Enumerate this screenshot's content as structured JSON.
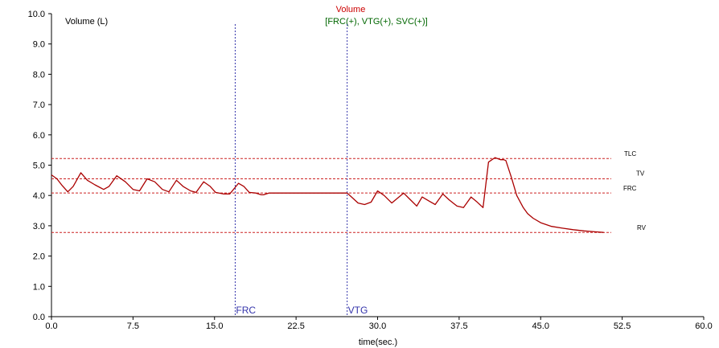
{
  "chart_data": {
    "type": "line",
    "title": "Volume",
    "subtitle": "[FRC(+), VTG(+), SVC(+)]",
    "ylabel": "Volume (L)",
    "xlabel": "time(sec.)",
    "xlim": [
      0,
      60
    ],
    "ylim": [
      0,
      10
    ],
    "x_ticks": [
      "0.0",
      "7.5",
      "15.0",
      "22.5",
      "30.0",
      "37.5",
      "45.0",
      "52.5",
      "60.0"
    ],
    "y_ticks": [
      "0.0",
      "1.0",
      "2.0",
      "3.0",
      "4.0",
      "5.0",
      "6.0",
      "7.0",
      "8.0",
      "9.0",
      "10.0"
    ],
    "reference_lines": [
      {
        "label": "TLC",
        "y": 5.22
      },
      {
        "label": "TV",
        "y": 4.55
      },
      {
        "label": "FRC",
        "y": 4.08
      },
      {
        "label": "RV",
        "y": 2.78
      }
    ],
    "markers": [
      {
        "label": "FRC",
        "x": 16.9
      },
      {
        "label": "VTG",
        "x": 27.2
      }
    ],
    "series": [
      {
        "color": "#aa0000",
        "x": [
          0,
          0.5,
          1.0,
          1.5,
          2.0,
          2.7,
          3.3,
          4.0,
          4.8,
          5.3,
          6.0,
          6.8,
          7.5,
          8.1,
          8.8,
          9.5,
          10.2,
          10.8,
          11.5,
          12.1,
          12.8,
          13.3,
          14.0,
          14.6,
          15.1,
          15.8,
          16.4,
          17.2,
          17.7,
          18.2,
          18.8,
          19.3,
          19.5,
          20.0,
          24.0,
          27.2,
          27.6,
          28.2,
          28.8,
          29.4,
          30.0,
          30.6,
          31.3,
          31.8,
          32.4,
          32.9,
          33.6,
          34.1,
          34.8,
          35.3,
          36.0,
          36.6,
          37.3,
          37.9,
          38.6,
          39.1,
          39.7,
          40.2,
          40.8,
          41.3,
          41.6,
          41.8,
          42.3,
          42.8,
          43.4,
          43.8,
          44.3,
          45.0,
          46.0,
          47.0,
          48.0,
          49.0,
          50.0,
          50.8
        ],
        "values": [
          4.68,
          4.55,
          4.32,
          4.12,
          4.3,
          4.75,
          4.5,
          4.35,
          4.2,
          4.3,
          4.65,
          4.45,
          4.2,
          4.15,
          4.55,
          4.45,
          4.2,
          4.12,
          4.5,
          4.3,
          4.15,
          4.1,
          4.45,
          4.3,
          4.1,
          4.05,
          4.05,
          4.4,
          4.3,
          4.1,
          4.08,
          4.02,
          4.02,
          4.08,
          4.08,
          4.08,
          3.95,
          3.75,
          3.7,
          3.78,
          4.15,
          4.0,
          3.75,
          3.9,
          4.08,
          3.9,
          3.65,
          3.95,
          3.8,
          3.7,
          4.05,
          3.85,
          3.65,
          3.6,
          3.95,
          3.8,
          3.6,
          5.1,
          5.25,
          5.18,
          5.18,
          5.15,
          4.6,
          4.0,
          3.6,
          3.4,
          3.25,
          3.1,
          2.98,
          2.92,
          2.87,
          2.83,
          2.8,
          2.78
        ]
      }
    ]
  }
}
